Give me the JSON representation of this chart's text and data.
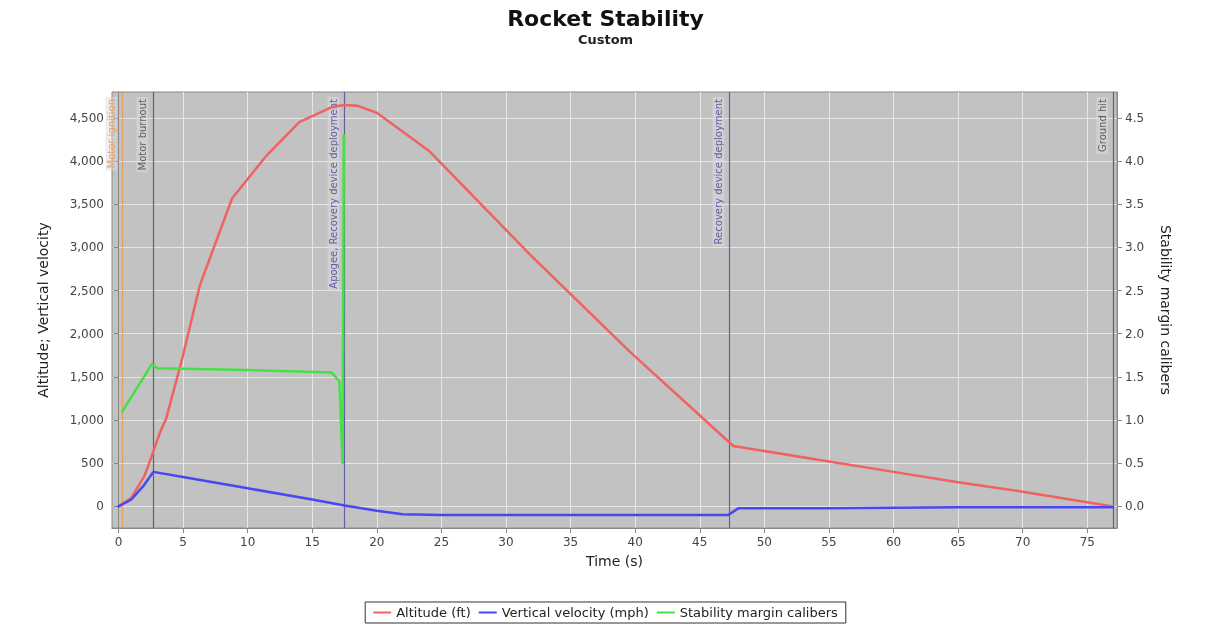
{
  "chart_data": {
    "type": "line",
    "title": "Rocket Stability",
    "subtitle": "Custom",
    "xlabel": "Time (s)",
    "ylabel": "Altitude; Vertical velocity",
    "y2label": "Stability margin calibers",
    "xlim": [
      -0.5,
      77.3
    ],
    "xticks": [
      0,
      5,
      10,
      15,
      20,
      25,
      30,
      35,
      40,
      45,
      50,
      55,
      60,
      65,
      70,
      75
    ],
    "ylim": [
      -250,
      4800
    ],
    "yticks": [
      {
        "value": 0,
        "label": "0"
      },
      {
        "value": 500,
        "label": "500"
      },
      {
        "value": 1000,
        "label": "1,000"
      },
      {
        "value": 1500,
        "label": "1,500"
      },
      {
        "value": 2000,
        "label": "2,000"
      },
      {
        "value": 2500,
        "label": "2,500"
      },
      {
        "value": 3000,
        "label": "3,000"
      },
      {
        "value": 3500,
        "label": "3,500"
      },
      {
        "value": 4000,
        "label": "4,000"
      },
      {
        "value": 4500,
        "label": "4,500"
      }
    ],
    "y2lim": [
      -0.25,
      4.8
    ],
    "y2ticks": [
      {
        "value": 0,
        "label": "0.0"
      },
      {
        "value": 0.5,
        "label": "0.5"
      },
      {
        "value": 1,
        "label": "1.0"
      },
      {
        "value": 1.5,
        "label": "1.5"
      },
      {
        "value": 2,
        "label": "2.0"
      },
      {
        "value": 2.5,
        "label": "2.5"
      },
      {
        "value": 3,
        "label": "3.0"
      },
      {
        "value": 3.5,
        "label": "3.5"
      },
      {
        "value": 4,
        "label": "4.0"
      },
      {
        "value": 4.5,
        "label": "4.5"
      }
    ],
    "grid": true,
    "legend": "bottom",
    "marker": "none",
    "line_style": "solid",
    "series": [
      {
        "name": "Altitude (ft)",
        "color": "#f06262",
        "x": [
          0,
          1,
          2,
          2.4,
          3.2,
          3.7,
          5,
          6.3,
          8.8,
          11.5,
          14,
          16.6,
          17.5,
          18.5,
          20,
          24.1,
          31.9,
          39.6,
          47.3,
          47.6,
          55,
          60,
          65,
          70,
          77
        ],
        "values": [
          0,
          100,
          350,
          510,
          850,
          1020,
          1750,
          2560,
          3570,
          4070,
          4450,
          4630,
          4650,
          4640,
          4560,
          4110,
          2910,
          1790,
          740,
          700,
          520,
          400,
          280,
          170,
          0
        ]
      },
      {
        "name": "Vertical velocity (mph)",
        "color": "#4848f0",
        "x": [
          0,
          1,
          2,
          2.7,
          5,
          10,
          15,
          17.5,
          20,
          22,
          25,
          47.2,
          47.6,
          48,
          55,
          65,
          77
        ],
        "values": [
          0,
          80,
          250,
          400,
          340,
          210,
          80,
          10,
          -50,
          -90,
          -100,
          -100,
          -60,
          -20,
          -20,
          -10,
          -10
        ]
      },
      {
        "name": "Stability margin calibers",
        "color": "#44e044",
        "axis": "y2",
        "x": [
          0.3,
          2.6,
          3,
          10,
          16.5,
          17.1,
          17.35,
          17.45
        ],
        "values": [
          1.1,
          1.65,
          1.6,
          1.58,
          1.55,
          1.45,
          0.5,
          4.3
        ]
      }
    ],
    "ref_lines": [
      {
        "axis": "x",
        "value": 0.3,
        "label": "Motor ignition",
        "color": "#e8a060"
      },
      {
        "axis": "x",
        "value": 2.7,
        "label": "Motor burnout",
        "color": "#606060"
      },
      {
        "axis": "x",
        "value": 17.5,
        "label": "Apogee, Recovery device deployment",
        "color": "#6060a0"
      },
      {
        "axis": "x",
        "value": 47.3,
        "label": "Recovery device deployment",
        "color": "#6060a0"
      },
      {
        "axis": "x",
        "value": 77,
        "label": "Ground hit",
        "color": "#606060"
      }
    ]
  }
}
